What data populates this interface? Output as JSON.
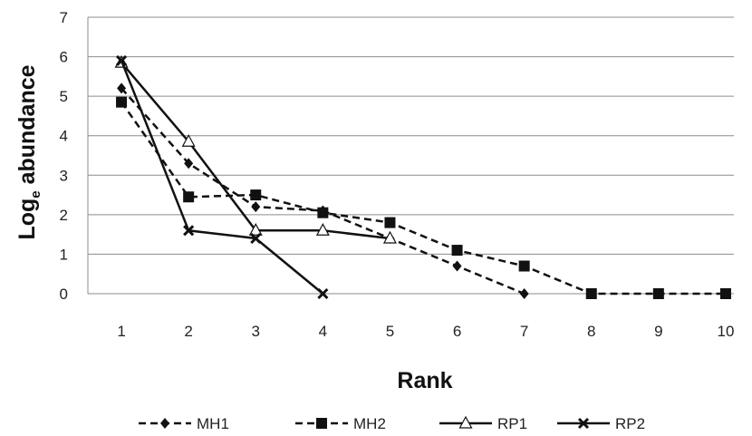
{
  "chart_data": {
    "type": "line",
    "xlabel": "Rank",
    "ylabel_main": "Log",
    "ylabel_sub": "e",
    "ylabel_rest": " abundance",
    "ylim": [
      0,
      7
    ],
    "yticks": [
      0,
      1,
      2,
      3,
      4,
      5,
      6,
      7
    ],
    "xticks": [
      1,
      2,
      3,
      4,
      5,
      6,
      7,
      8,
      9,
      10
    ],
    "grid": true,
    "legend_position": "bottom",
    "series": [
      {
        "name": "MH1",
        "line_style": "dashed",
        "marker": "diamond",
        "x": [
          1,
          2,
          3,
          4,
          5,
          6,
          7
        ],
        "y": [
          5.2,
          3.3,
          2.2,
          2.1,
          1.4,
          0.7,
          0
        ]
      },
      {
        "name": "MH2",
        "line_style": "dashed",
        "marker": "square",
        "x": [
          1,
          2,
          3,
          4,
          5,
          6,
          7,
          8,
          9,
          10
        ],
        "y": [
          4.85,
          2.45,
          2.5,
          2.05,
          1.8,
          1.1,
          0.7,
          0,
          0,
          0
        ]
      },
      {
        "name": "RP1",
        "line_style": "solid",
        "marker": "triangle-open",
        "x": [
          1,
          2,
          3,
          4,
          5
        ],
        "y": [
          5.85,
          3.85,
          1.6,
          1.6,
          1.4
        ]
      },
      {
        "name": "RP2",
        "line_style": "solid",
        "marker": "x",
        "x": [
          1,
          2,
          3,
          4
        ],
        "y": [
          5.9,
          1.6,
          1.4,
          0
        ]
      }
    ]
  }
}
